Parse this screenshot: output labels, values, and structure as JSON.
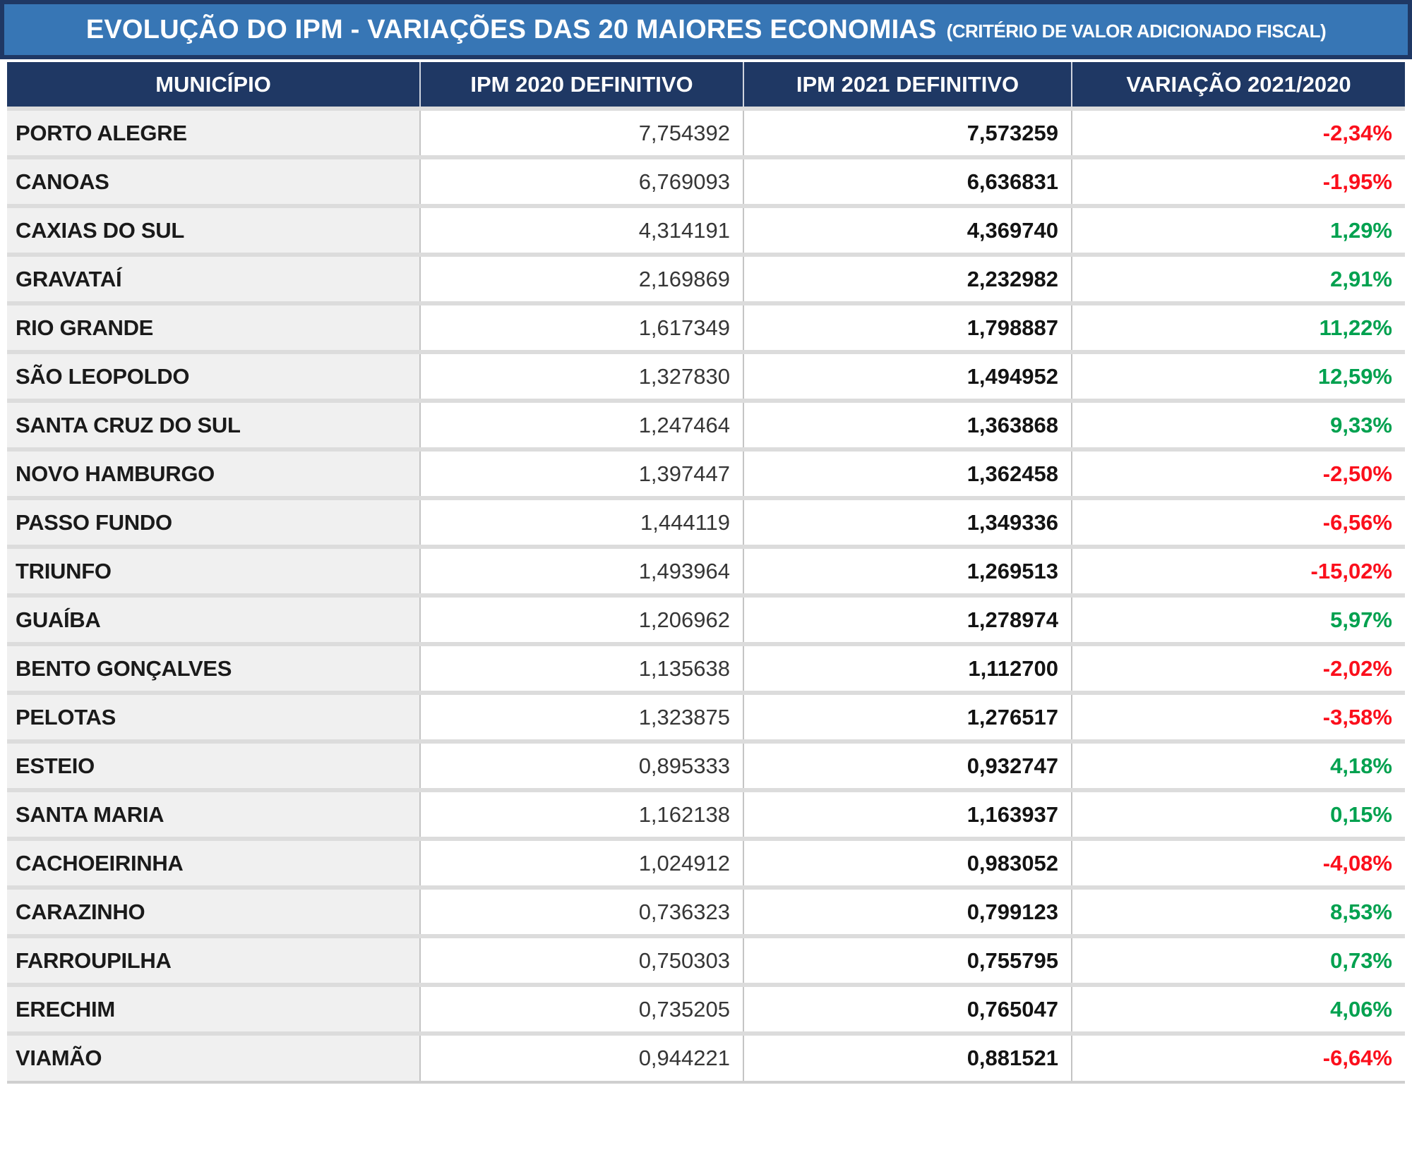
{
  "title": {
    "main": "EVOLUÇÃO DO IPM - VARIAÇÕES DAS 20 MAIORES ECONOMIAS",
    "note": "(CRITÉRIO DE VALOR ADICIONADO FISCAL)"
  },
  "colors": {
    "title_bg": "#3776B5",
    "title_border": "#1F3864",
    "header_bg": "#1F3864",
    "header_text": "#FFFFFF",
    "municipio_cell_bg": "#F0F0F0",
    "positive": "#00A14F",
    "negative": "#FB0F1C"
  },
  "table": {
    "columns": [
      "MUNICÍPIO",
      "IPM 2020 DEFINITIVO",
      "IPM 2021 DEFINITIVO",
      "VARIAÇÃO 2021/2020"
    ],
    "rows": [
      {
        "municipio": "PORTO ALEGRE",
        "ipm_2020": "7,754392",
        "ipm_2021": "7,573259",
        "variacao": "-2,34%"
      },
      {
        "municipio": "CANOAS",
        "ipm_2020": "6,769093",
        "ipm_2021": "6,636831",
        "variacao": "-1,95%"
      },
      {
        "municipio": "CAXIAS DO SUL",
        "ipm_2020": "4,314191",
        "ipm_2021": "4,369740",
        "variacao": "1,29%"
      },
      {
        "municipio": "GRAVATAÍ",
        "ipm_2020": "2,169869",
        "ipm_2021": "2,232982",
        "variacao": "2,91%"
      },
      {
        "municipio": "RIO GRANDE",
        "ipm_2020": "1,617349",
        "ipm_2021": "1,798887",
        "variacao": "11,22%"
      },
      {
        "municipio": "SÃO LEOPOLDO",
        "ipm_2020": "1,327830",
        "ipm_2021": "1,494952",
        "variacao": "12,59%"
      },
      {
        "municipio": "SANTA CRUZ DO SUL",
        "ipm_2020": "1,247464",
        "ipm_2021": "1,363868",
        "variacao": "9,33%"
      },
      {
        "municipio": "NOVO HAMBURGO",
        "ipm_2020": "1,397447",
        "ipm_2021": "1,362458",
        "variacao": "-2,50%"
      },
      {
        "municipio": "PASSO FUNDO",
        "ipm_2020": "1,444119",
        "ipm_2021": "1,349336",
        "variacao": "-6,56%"
      },
      {
        "municipio": "TRIUNFO",
        "ipm_2020": "1,493964",
        "ipm_2021": "1,269513",
        "variacao": "-15,02%"
      },
      {
        "municipio": "GUAÍBA",
        "ipm_2020": "1,206962",
        "ipm_2021": "1,278974",
        "variacao": "5,97%"
      },
      {
        "municipio": "BENTO GONÇALVES",
        "ipm_2020": "1,135638",
        "ipm_2021": "1,112700",
        "variacao": "-2,02%"
      },
      {
        "municipio": "PELOTAS",
        "ipm_2020": "1,323875",
        "ipm_2021": "1,276517",
        "variacao": "-3,58%"
      },
      {
        "municipio": "ESTEIO",
        "ipm_2020": "0,895333",
        "ipm_2021": "0,932747",
        "variacao": "4,18%"
      },
      {
        "municipio": "SANTA MARIA",
        "ipm_2020": "1,162138",
        "ipm_2021": "1,163937",
        "variacao": "0,15%"
      },
      {
        "municipio": "CACHOEIRINHA",
        "ipm_2020": "1,024912",
        "ipm_2021": "0,983052",
        "variacao": "-4,08%"
      },
      {
        "municipio": "CARAZINHO",
        "ipm_2020": "0,736323",
        "ipm_2021": "0,799123",
        "variacao": "8,53%"
      },
      {
        "municipio": "FARROUPILHA",
        "ipm_2020": "0,750303",
        "ipm_2021": "0,755795",
        "variacao": "0,73%"
      },
      {
        "municipio": "ERECHIM",
        "ipm_2020": "0,735205",
        "ipm_2021": "0,765047",
        "variacao": "4,06%"
      },
      {
        "municipio": "VIAMÃO",
        "ipm_2020": "0,944221",
        "ipm_2021": "0,881521",
        "variacao": "-6,64%"
      }
    ]
  },
  "chart_data": {
    "type": "table",
    "title": "EVOLUÇÃO DO IPM - VARIAÇÕES DAS 20 MAIORES ECONOMIAS (CRITÉRIO DE VALOR ADICIONADO FISCAL)",
    "columns": [
      "MUNICÍPIO",
      "IPM 2020 DEFINITIVO",
      "IPM 2021 DEFINITIVO",
      "VARIAÇÃO 2021/2020"
    ],
    "rows": [
      {
        "municipio": "PORTO ALEGRE",
        "ipm_2020": 7.754392,
        "ipm_2021": 7.573259,
        "variacao_pct": -2.34
      },
      {
        "municipio": "CANOAS",
        "ipm_2020": 6.769093,
        "ipm_2021": 6.636831,
        "variacao_pct": -1.95
      },
      {
        "municipio": "CAXIAS DO SUL",
        "ipm_2020": 4.314191,
        "ipm_2021": 4.36974,
        "variacao_pct": 1.29
      },
      {
        "municipio": "GRAVATAÍ",
        "ipm_2020": 2.169869,
        "ipm_2021": 2.232982,
        "variacao_pct": 2.91
      },
      {
        "municipio": "RIO GRANDE",
        "ipm_2020": 1.617349,
        "ipm_2021": 1.798887,
        "variacao_pct": 11.22
      },
      {
        "municipio": "SÃO LEOPOLDO",
        "ipm_2020": 1.32783,
        "ipm_2021": 1.494952,
        "variacao_pct": 12.59
      },
      {
        "municipio": "SANTA CRUZ DO SUL",
        "ipm_2020": 1.247464,
        "ipm_2021": 1.363868,
        "variacao_pct": 9.33
      },
      {
        "municipio": "NOVO HAMBURGO",
        "ipm_2020": 1.397447,
        "ipm_2021": 1.362458,
        "variacao_pct": -2.5
      },
      {
        "municipio": "PASSO FUNDO",
        "ipm_2020": 1.444119,
        "ipm_2021": 1.349336,
        "variacao_pct": -6.56
      },
      {
        "municipio": "TRIUNFO",
        "ipm_2020": 1.493964,
        "ipm_2021": 1.269513,
        "variacao_pct": -15.02
      },
      {
        "municipio": "GUAÍBA",
        "ipm_2020": 1.206962,
        "ipm_2021": 1.278974,
        "variacao_pct": 5.97
      },
      {
        "municipio": "BENTO GONÇALVES",
        "ipm_2020": 1.135638,
        "ipm_2021": 1.1127,
        "variacao_pct": -2.02
      },
      {
        "municipio": "PELOTAS",
        "ipm_2020": 1.323875,
        "ipm_2021": 1.276517,
        "variacao_pct": -3.58
      },
      {
        "municipio": "ESTEIO",
        "ipm_2020": 0.895333,
        "ipm_2021": 0.932747,
        "variacao_pct": 4.18
      },
      {
        "municipio": "SANTA MARIA",
        "ipm_2020": 1.162138,
        "ipm_2021": 1.163937,
        "variacao_pct": 0.15
      },
      {
        "municipio": "CACHOEIRINHA",
        "ipm_2020": 1.024912,
        "ipm_2021": 0.983052,
        "variacao_pct": -4.08
      },
      {
        "municipio": "CARAZINHO",
        "ipm_2020": 0.736323,
        "ipm_2021": 0.799123,
        "variacao_pct": 8.53
      },
      {
        "municipio": "FARROUPILHA",
        "ipm_2020": 0.750303,
        "ipm_2021": 0.755795,
        "variacao_pct": 0.73
      },
      {
        "municipio": "ERECHIM",
        "ipm_2020": 0.735205,
        "ipm_2021": 0.765047,
        "variacao_pct": 4.06
      },
      {
        "municipio": "VIAMÃO",
        "ipm_2020": 0.944221,
        "ipm_2021": 0.881521,
        "variacao_pct": -6.64
      }
    ]
  }
}
